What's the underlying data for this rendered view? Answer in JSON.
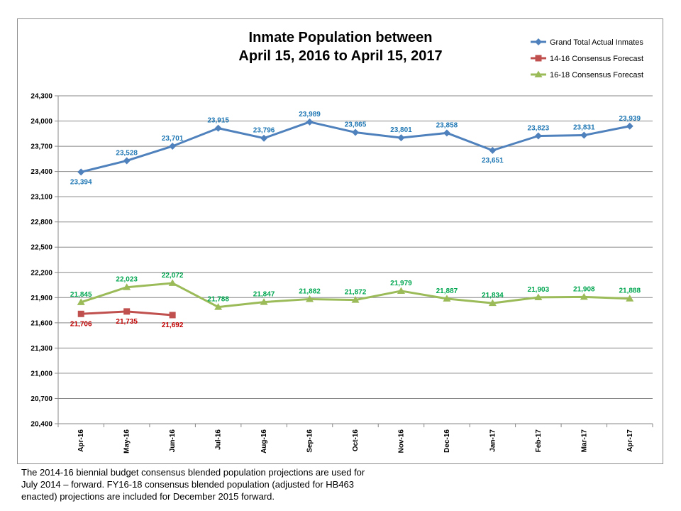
{
  "chart_data": {
    "type": "line",
    "title_lines": [
      "Inmate Population between",
      "April 15, 2016 to April 15, 2017"
    ],
    "categories": [
      "Apr-16",
      "May-16",
      "Jun-16",
      "Jul-16",
      "Aug-16",
      "Sep-16",
      "Oct-16",
      "Nov-16",
      "Dec-16",
      "Jan-17",
      "Feb-17",
      "Mar-17",
      "Apr-17"
    ],
    "ylim": [
      20400,
      24300
    ],
    "yticks": [
      20400,
      20700,
      21000,
      21300,
      21600,
      21900,
      22200,
      22500,
      22800,
      23100,
      23400,
      23700,
      24000,
      24300
    ],
    "ytick_labels": [
      "20,400",
      "20,700",
      "21,000",
      "21,300",
      "21,600",
      "21,900",
      "22,200",
      "22,500",
      "22,800",
      "23,100",
      "23,400",
      "23,700",
      "24,000",
      "24,300"
    ],
    "grid": true,
    "legend_position": "top-right",
    "series": [
      {
        "name": "Grand Total Actual Inmates",
        "color": "#4f81bd",
        "label_color": "#1f77b4",
        "marker": "diamond",
        "values": [
          23394,
          23528,
          23701,
          23915,
          23796,
          23989,
          23865,
          23801,
          23858,
          23651,
          23823,
          23831,
          23939
        ],
        "labels": [
          "23,394",
          "23,528",
          "23,701",
          "23,915",
          "23,796",
          "23,989",
          "23,865",
          "23,801",
          "23,858",
          "23,651",
          "23,823",
          "23,831",
          "23,939"
        ],
        "label_side": [
          "below",
          "above",
          "above",
          "above",
          "above",
          "above",
          "above",
          "above",
          "above",
          "below",
          "above",
          "above",
          "above"
        ]
      },
      {
        "name": "14-16 Consensus Forecast",
        "color": "#c0504d",
        "label_color": "#c00000",
        "marker": "square",
        "values": [
          21706,
          21735,
          21692,
          null,
          null,
          null,
          null,
          null,
          null,
          null,
          null,
          null,
          null
        ],
        "labels": [
          "21,706",
          "21,735",
          "21,692",
          null,
          null,
          null,
          null,
          null,
          null,
          null,
          null,
          null,
          null
        ],
        "label_side": [
          "below",
          "below",
          "below",
          null,
          null,
          null,
          null,
          null,
          null,
          null,
          null,
          null,
          null
        ]
      },
      {
        "name": "16-18 Consensus Forecast",
        "color": "#9bbb59",
        "label_color": "#00a650",
        "marker": "triangle",
        "values": [
          21845,
          22023,
          22072,
          21788,
          21847,
          21882,
          21872,
          21979,
          21887,
          21834,
          21903,
          21908,
          21888
        ],
        "labels": [
          "21,845",
          "22,023",
          "22,072",
          "21,788",
          "21,847",
          "21,882",
          "21,872",
          "21,979",
          "21,887",
          "21,834",
          "21,903",
          "21,908",
          "21,888"
        ],
        "label_side": [
          "above",
          "above",
          "above",
          "above",
          "above",
          "above",
          "above",
          "above",
          "above",
          "above",
          "above",
          "above",
          "above"
        ]
      }
    ]
  },
  "footnote_lines": [
    "The 2014-16 biennial budget consensus blended population projections are used for",
    "July 2014 – forward.  FY16-18 consensus blended population (adjusted for HB463",
    "enacted) projections are included for December 2015 forward."
  ]
}
